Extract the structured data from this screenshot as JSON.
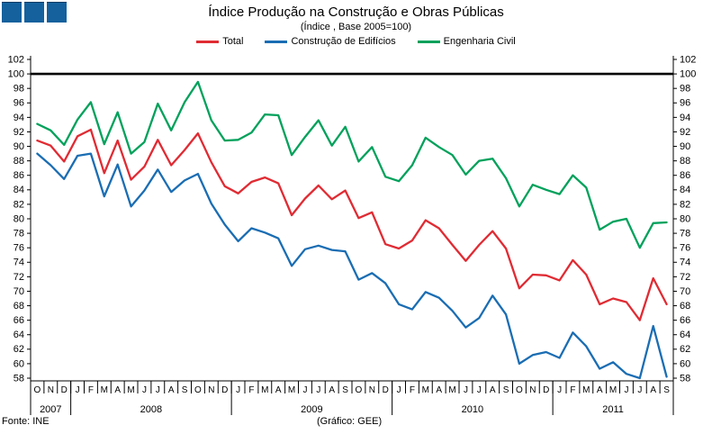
{
  "header": {
    "title": "Índice Produção na Construção e Obras Públicas",
    "subtitle": "(Índice , Base 2005=100)",
    "logo_color": "#14619e",
    "logo_squares": 3
  },
  "legend": {
    "items": [
      {
        "label": "Total",
        "color": "#e02b33"
      },
      {
        "label": "Construção de Edifícios",
        "color": "#1a6db3"
      },
      {
        "label": "Engenharia Civil",
        "color": "#00a15b"
      }
    ]
  },
  "footer": {
    "source": "Fonte: INE",
    "credit": "(Gráfico: GEE)"
  },
  "chart_data": {
    "type": "line",
    "ylim": [
      58,
      102
    ],
    "ytick_step": 2,
    "reference_line": 100,
    "grid": false,
    "legend_position": "top",
    "x_months": [
      "O",
      "N",
      "D",
      "J",
      "F",
      "M",
      "A",
      "M",
      "J",
      "J",
      "A",
      "S",
      "O",
      "N",
      "D",
      "J",
      "F",
      "M",
      "A",
      "M",
      "J",
      "J",
      "A",
      "S",
      "O",
      "N",
      "D",
      "J",
      "F",
      "M",
      "A",
      "M",
      "J",
      "J",
      "A",
      "S",
      "O",
      "N",
      "D",
      "J",
      "F",
      "M",
      "A",
      "M",
      "J",
      "J",
      "A",
      "S"
    ],
    "year_groups": [
      {
        "label": "2007",
        "months": 3
      },
      {
        "label": "2008",
        "months": 12
      },
      {
        "label": "2009",
        "months": 12
      },
      {
        "label": "2010",
        "months": 12
      },
      {
        "label": "2011",
        "months": 9
      }
    ],
    "series": [
      {
        "name": "Total",
        "color": "#e02b33",
        "values": [
          90.8,
          90.1,
          87.9,
          91.4,
          92.3,
          86.3,
          90.8,
          85.4,
          87.2,
          90.9,
          87.4,
          89.5,
          91.8,
          87.8,
          84.5,
          83.5,
          85.1,
          85.7,
          84.9,
          80.5,
          82.8,
          84.6,
          82.7,
          83.9,
          80.1,
          80.9,
          76.5,
          75.9,
          77.0,
          79.8,
          78.7,
          76.4,
          74.2,
          76.4,
          78.3,
          75.9,
          70.4,
          72.3,
          72.2,
          71.5,
          74.3,
          72.3,
          68.2,
          69.0,
          68.5,
          66.0,
          71.8,
          68.2
        ]
      },
      {
        "name": "Construção de Edifícios",
        "color": "#1a6db3",
        "values": [
          89.0,
          87.4,
          85.5,
          88.7,
          89.0,
          83.1,
          87.5,
          81.7,
          83.9,
          86.8,
          83.7,
          85.3,
          86.2,
          82.1,
          79.2,
          76.9,
          78.7,
          78.1,
          77.3,
          73.5,
          75.8,
          76.3,
          75.7,
          75.5,
          71.6,
          72.5,
          71.1,
          68.2,
          67.5,
          69.9,
          69.1,
          67.3,
          65.0,
          66.3,
          69.4,
          66.8,
          60.0,
          61.2,
          61.6,
          60.8,
          64.3,
          62.4,
          59.3,
          60.2,
          58.6,
          58.0,
          65.2,
          58.2
        ]
      },
      {
        "name": "Engenharia Civil",
        "color": "#00a15b",
        "values": [
          93.1,
          92.2,
          90.2,
          93.7,
          96.1,
          90.3,
          94.7,
          89.0,
          90.6,
          95.9,
          92.2,
          96.1,
          98.9,
          93.6,
          90.8,
          90.9,
          91.9,
          94.4,
          94.3,
          88.8,
          91.3,
          93.6,
          90.1,
          92.7,
          87.9,
          89.9,
          85.8,
          85.2,
          87.4,
          91.2,
          89.9,
          88.8,
          86.1,
          88.0,
          88.3,
          85.6,
          81.7,
          84.7,
          84.0,
          83.4,
          86.0,
          84.3,
          78.5,
          79.6,
          80.0,
          76.0,
          79.4,
          79.5
        ]
      }
    ]
  }
}
